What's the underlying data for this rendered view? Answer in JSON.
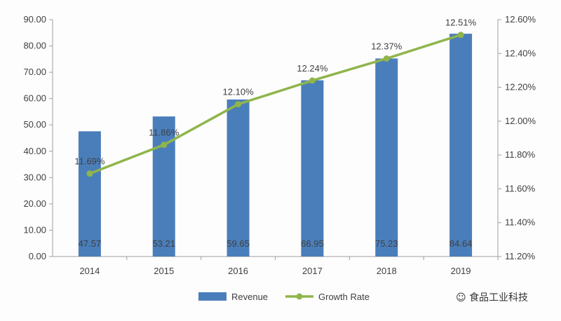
{
  "chart_data": {
    "type": "bar",
    "categories": [
      "2014",
      "2015",
      "2016",
      "2017",
      "2018",
      "2019"
    ],
    "series": [
      {
        "name": "Revenue",
        "type": "bar",
        "axis": "left",
        "values": [
          47.57,
          53.21,
          59.65,
          66.95,
          75.23,
          84.64
        ],
        "labels": [
          "47.57",
          "53.21",
          "59.65",
          "66.95",
          "75.23",
          "84.64"
        ]
      },
      {
        "name": "Growth Rate",
        "type": "line",
        "axis": "right",
        "values": [
          11.69,
          11.86,
          12.1,
          12.24,
          12.37,
          12.51
        ],
        "labels": [
          "11.69%",
          "11.86%",
          "12.10%",
          "12.24%",
          "12.37%",
          "12.51%"
        ]
      }
    ],
    "y_left": {
      "min": 0,
      "max": 90,
      "step": 10,
      "ticks": [
        "0.00",
        "10.00",
        "20.00",
        "30.00",
        "40.00",
        "50.00",
        "60.00",
        "70.00",
        "80.00",
        "90.00"
      ]
    },
    "y_right": {
      "min": 11.2,
      "max": 12.6,
      "step": 0.2,
      "ticks": [
        "11.20%",
        "11.40%",
        "11.60%",
        "11.80%",
        "12.00%",
        "12.20%",
        "12.40%",
        "12.60%"
      ]
    },
    "grid": false,
    "legend": "bottom-center",
    "colors": {
      "bar": "#4a7ebb",
      "line": "#8fb54b",
      "axis": "#a0a0a0"
    }
  },
  "watermark": {
    "text": "食品工业科技",
    "icon": "wechat-icon"
  }
}
